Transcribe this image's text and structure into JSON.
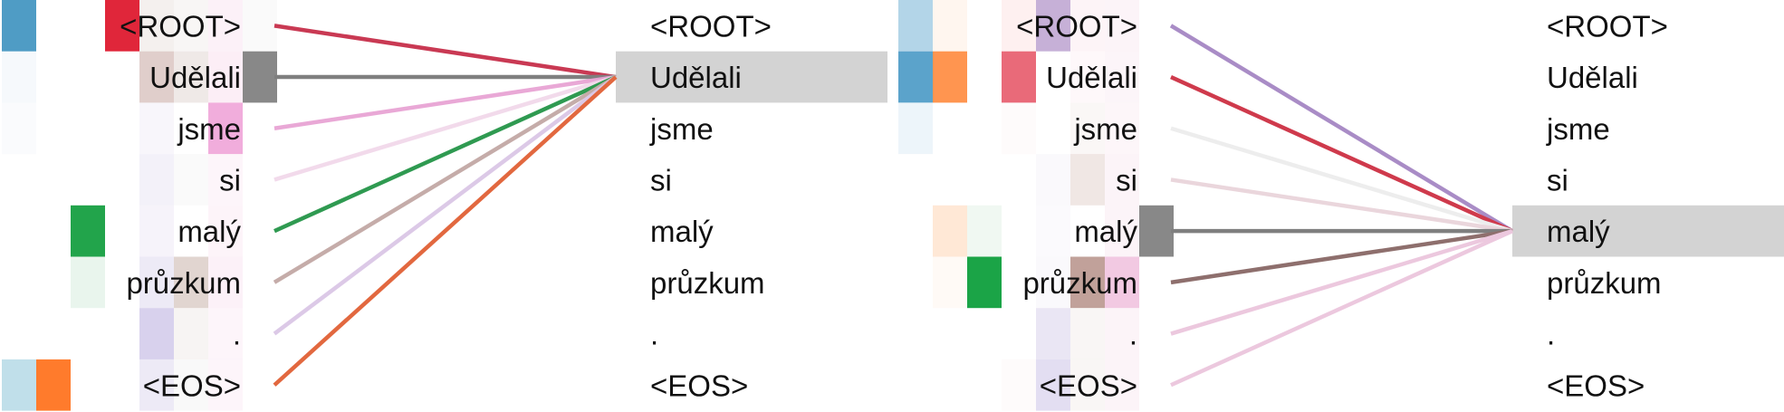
{
  "tokens": [
    "<ROOT>",
    "Udělali",
    "jsme",
    "si",
    "malý",
    "průzkum",
    ".",
    "<EOS>"
  ],
  "panels": [
    {
      "query_index": 1,
      "cells": [
        {
          "r": 0,
          "c": 0,
          "color": "#4f9cc5",
          "a": 1.0
        },
        {
          "r": 0,
          "c": 3,
          "color": "#e0263a",
          "a": 1.0
        },
        {
          "r": 0,
          "c": 4,
          "color": "#c9b3aa",
          "a": 0.2
        },
        {
          "r": 0,
          "c": 5,
          "color": "#c9b3aa",
          "a": 0.12
        },
        {
          "r": 0,
          "c": 6,
          "color": "#f4c6e2",
          "a": 0.25
        },
        {
          "r": 0,
          "c": 7,
          "color": "#dddddd",
          "a": 0.15
        },
        {
          "r": 1,
          "c": 0,
          "color": "#c5d7ec",
          "a": 0.15
        },
        {
          "r": 1,
          "c": 4,
          "color": "#c7a6a0",
          "a": 0.55
        },
        {
          "r": 1,
          "c": 5,
          "color": "#d7c8c4",
          "a": 0.4
        },
        {
          "r": 1,
          "c": 6,
          "color": "#f4c6e2",
          "a": 0.3
        },
        {
          "r": 1,
          "c": 7,
          "color": "#888888",
          "a": 1.0
        },
        {
          "r": 2,
          "c": 0,
          "color": "#e6ecf3",
          "a": 0.2
        },
        {
          "r": 2,
          "c": 4,
          "color": "#e4dcef",
          "a": 0.25
        },
        {
          "r": 2,
          "c": 6,
          "color": "#ef9fd6",
          "a": 0.85
        },
        {
          "r": 3,
          "c": 4,
          "color": "#d7d0ea",
          "a": 0.3
        },
        {
          "r": 3,
          "c": 5,
          "color": "#eeeeee",
          "a": 0.3
        },
        {
          "r": 3,
          "c": 6,
          "color": "#f4c6e2",
          "a": 0.18
        },
        {
          "r": 4,
          "c": 2,
          "color": "#22a44b",
          "a": 1.0
        },
        {
          "r": 4,
          "c": 4,
          "color": "#e0d8ef",
          "a": 0.3
        },
        {
          "r": 4,
          "c": 6,
          "color": "#f4c6e2",
          "a": 0.2
        },
        {
          "r": 5,
          "c": 2,
          "color": "#cfe9d7",
          "a": 0.45
        },
        {
          "r": 5,
          "c": 4,
          "color": "#d7d0ea",
          "a": 0.45
        },
        {
          "r": 5,
          "c": 5,
          "color": "#c9b3aa",
          "a": 0.55
        },
        {
          "r": 5,
          "c": 6,
          "color": "#f4c6e2",
          "a": 0.25
        },
        {
          "r": 6,
          "c": 4,
          "color": "#c8bde6",
          "a": 0.7
        },
        {
          "r": 6,
          "c": 5,
          "color": "#e7e0dc",
          "a": 0.35
        },
        {
          "r": 6,
          "c": 6,
          "color": "#f4c6e2",
          "a": 0.18
        },
        {
          "r": 7,
          "c": 0,
          "color": "#b9dbe8",
          "a": 0.9
        },
        {
          "r": 7,
          "c": 1,
          "color": "#ff7b2c",
          "a": 1.0
        },
        {
          "r": 7,
          "c": 4,
          "color": "#d7d0ea",
          "a": 0.45
        },
        {
          "r": 7,
          "c": 5,
          "color": "#eeeeee",
          "a": 0.35
        },
        {
          "r": 7,
          "c": 6,
          "color": "#f4c6e2",
          "a": 0.18
        }
      ],
      "lines": [
        {
          "from": 0,
          "color": "#c62e4a",
          "a": 0.95
        },
        {
          "from": 1,
          "color": "#7f7f7f",
          "a": 1.0
        },
        {
          "from": 2,
          "color": "#e8a3d4",
          "a": 0.95
        },
        {
          "from": 3,
          "color": "#f1d6e9",
          "a": 0.9
        },
        {
          "from": 4,
          "color": "#2f9a51",
          "a": 1.0
        },
        {
          "from": 5,
          "color": "#c5aca9",
          "a": 1.0
        },
        {
          "from": 6,
          "color": "#dac6e6",
          "a": 0.95
        },
        {
          "from": 7,
          "color": "#e2683f",
          "a": 1.0
        }
      ]
    },
    {
      "query_index": 4,
      "cells": [
        {
          "r": 0,
          "c": 0,
          "color": "#b3d5e8",
          "a": 1.0
        },
        {
          "r": 0,
          "c": 1,
          "color": "#ffe9d8",
          "a": 0.4
        },
        {
          "r": 0,
          "c": 3,
          "color": "#fde2e2",
          "a": 0.5
        },
        {
          "r": 0,
          "c": 4,
          "color": "#c6b0d7",
          "a": 1.0
        },
        {
          "r": 0,
          "c": 5,
          "color": "#fbe7ee",
          "a": 0.45
        },
        {
          "r": 0,
          "c": 6,
          "color": "#f8e6ef",
          "a": 0.45
        },
        {
          "r": 1,
          "c": 0,
          "color": "#5ba3cb",
          "a": 1.0
        },
        {
          "r": 1,
          "c": 1,
          "color": "#ff9550",
          "a": 1.0
        },
        {
          "r": 1,
          "c": 3,
          "color": "#e96a79",
          "a": 1.0
        },
        {
          "r": 1,
          "c": 5,
          "color": "#fbe7ee",
          "a": 0.3
        },
        {
          "r": 1,
          "c": 6,
          "color": "#f8e6ef",
          "a": 0.4
        },
        {
          "r": 2,
          "c": 0,
          "color": "#e6f1f8",
          "a": 0.7
        },
        {
          "r": 2,
          "c": 3,
          "color": "#fdf3f3",
          "a": 0.3
        },
        {
          "r": 2,
          "c": 5,
          "color": "#f2ece9",
          "a": 0.4
        },
        {
          "r": 2,
          "c": 6,
          "color": "#f8e6ef",
          "a": 0.35
        },
        {
          "r": 3,
          "c": 4,
          "color": "#f3f0f8",
          "a": 0.4
        },
        {
          "r": 3,
          "c": 5,
          "color": "#e6d7d2",
          "a": 0.6
        },
        {
          "r": 3,
          "c": 6,
          "color": "#f8e6ef",
          "a": 0.45
        },
        {
          "r": 4,
          "c": 1,
          "color": "#ffe2cc",
          "a": 0.8
        },
        {
          "r": 4,
          "c": 2,
          "color": "#e9f5ec",
          "a": 0.7
        },
        {
          "r": 4,
          "c": 4,
          "color": "#f3f0f8",
          "a": 0.35
        },
        {
          "r": 4,
          "c": 6,
          "color": "#f8e6ef",
          "a": 0.45
        },
        {
          "r": 4,
          "c": 7,
          "color": "#888888",
          "a": 1.0
        },
        {
          "r": 5,
          "c": 1,
          "color": "#fff2e8",
          "a": 0.4
        },
        {
          "r": 5,
          "c": 2,
          "color": "#1ba447",
          "a": 1.0
        },
        {
          "r": 5,
          "c": 4,
          "color": "#f3f0f8",
          "a": 0.4
        },
        {
          "r": 5,
          "c": 5,
          "color": "#c1a19a",
          "a": 1.0
        },
        {
          "r": 5,
          "c": 6,
          "color": "#f2c9e2",
          "a": 1.0
        },
        {
          "r": 6,
          "c": 4,
          "color": "#e5e0f1",
          "a": 0.8
        },
        {
          "r": 6,
          "c": 5,
          "color": "#f4eeeb",
          "a": 0.5
        },
        {
          "r": 6,
          "c": 6,
          "color": "#f8e6ef",
          "a": 0.45
        },
        {
          "r": 7,
          "c": 3,
          "color": "#fdf3f3",
          "a": 0.3
        },
        {
          "r": 7,
          "c": 4,
          "color": "#dcd6ef",
          "a": 0.8
        },
        {
          "r": 7,
          "c": 5,
          "color": "#f4eeeb",
          "a": 0.5
        },
        {
          "r": 7,
          "c": 6,
          "color": "#f8e6ef",
          "a": 0.45
        }
      ],
      "lines": [
        {
          "from": 0,
          "color": "#a98cc6",
          "a": 1.0
        },
        {
          "from": 1,
          "color": "#cf3a4c",
          "a": 1.0
        },
        {
          "from": 2,
          "color": "#ededed",
          "a": 1.0
        },
        {
          "from": 3,
          "color": "#ead6dc",
          "a": 1.0
        },
        {
          "from": 4,
          "color": "#7f7f7f",
          "a": 1.0
        },
        {
          "from": 5,
          "color": "#8e6f6d",
          "a": 1.0
        },
        {
          "from": 6,
          "color": "#ecc8de",
          "a": 1.0
        },
        {
          "from": 7,
          "color": "#ecc8de",
          "a": 1.0
        }
      ]
    }
  ]
}
